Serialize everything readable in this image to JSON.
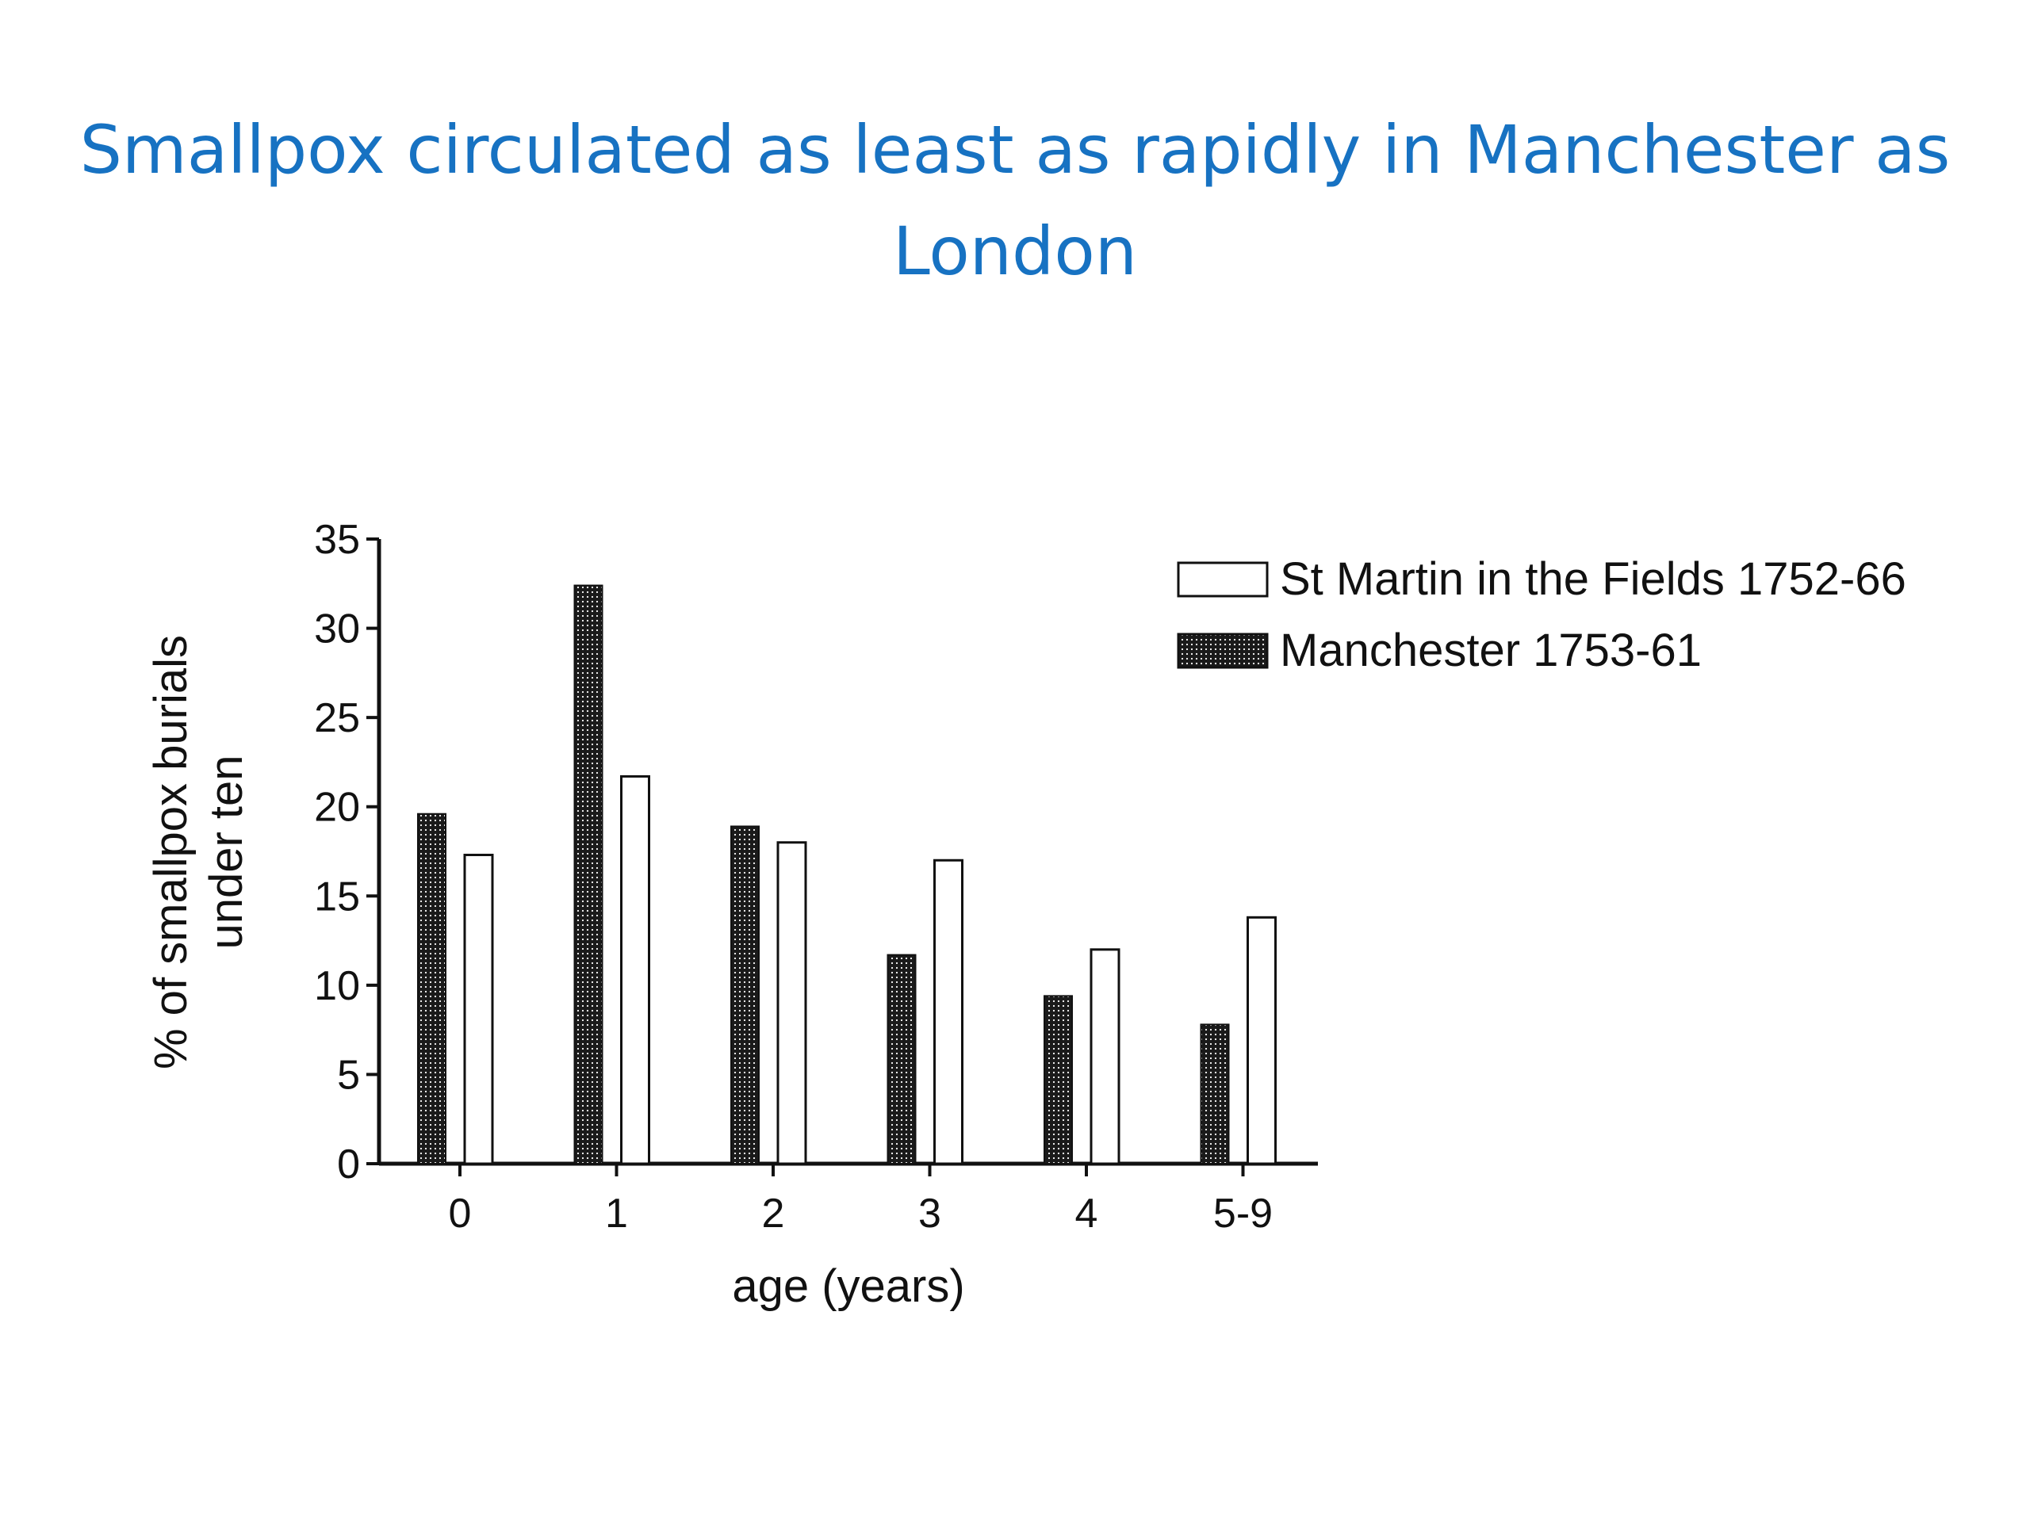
{
  "slide": {
    "title": "Smallpox circulated as least as rapidly in Manchester as London"
  },
  "colors": {
    "title": "#1772c2",
    "axis": "#111111",
    "bar_outline": "#111111",
    "open_bar_fill": "#ffffff",
    "dotted_bar_fill": "#1a1a1a"
  },
  "chart_data": {
    "type": "bar",
    "title": "",
    "xlabel": "age (years)",
    "ylabel_lines": [
      "% of smallpox burials",
      "under ten"
    ],
    "ylim": [
      0,
      35
    ],
    "yticks": [
      "0",
      "5",
      "10",
      "15",
      "20",
      "25",
      "30",
      "35"
    ],
    "categories": [
      "0",
      "1",
      "2",
      "3",
      "4",
      "5-9"
    ],
    "grid": false,
    "legend_position": "top-right",
    "series": [
      {
        "name": "Manchester 1753-61",
        "style": "dotted-dark",
        "values": [
          19.6,
          32.4,
          18.9,
          11.7,
          9.4,
          7.8
        ]
      },
      {
        "name": "St Martin in the Fields 1752-66",
        "style": "open",
        "values": [
          17.3,
          21.7,
          18.0,
          17.0,
          12.0,
          13.8
        ]
      }
    ],
    "legend_order": [
      "St Martin in the Fields 1752-66",
      "Manchester 1753-61"
    ]
  }
}
